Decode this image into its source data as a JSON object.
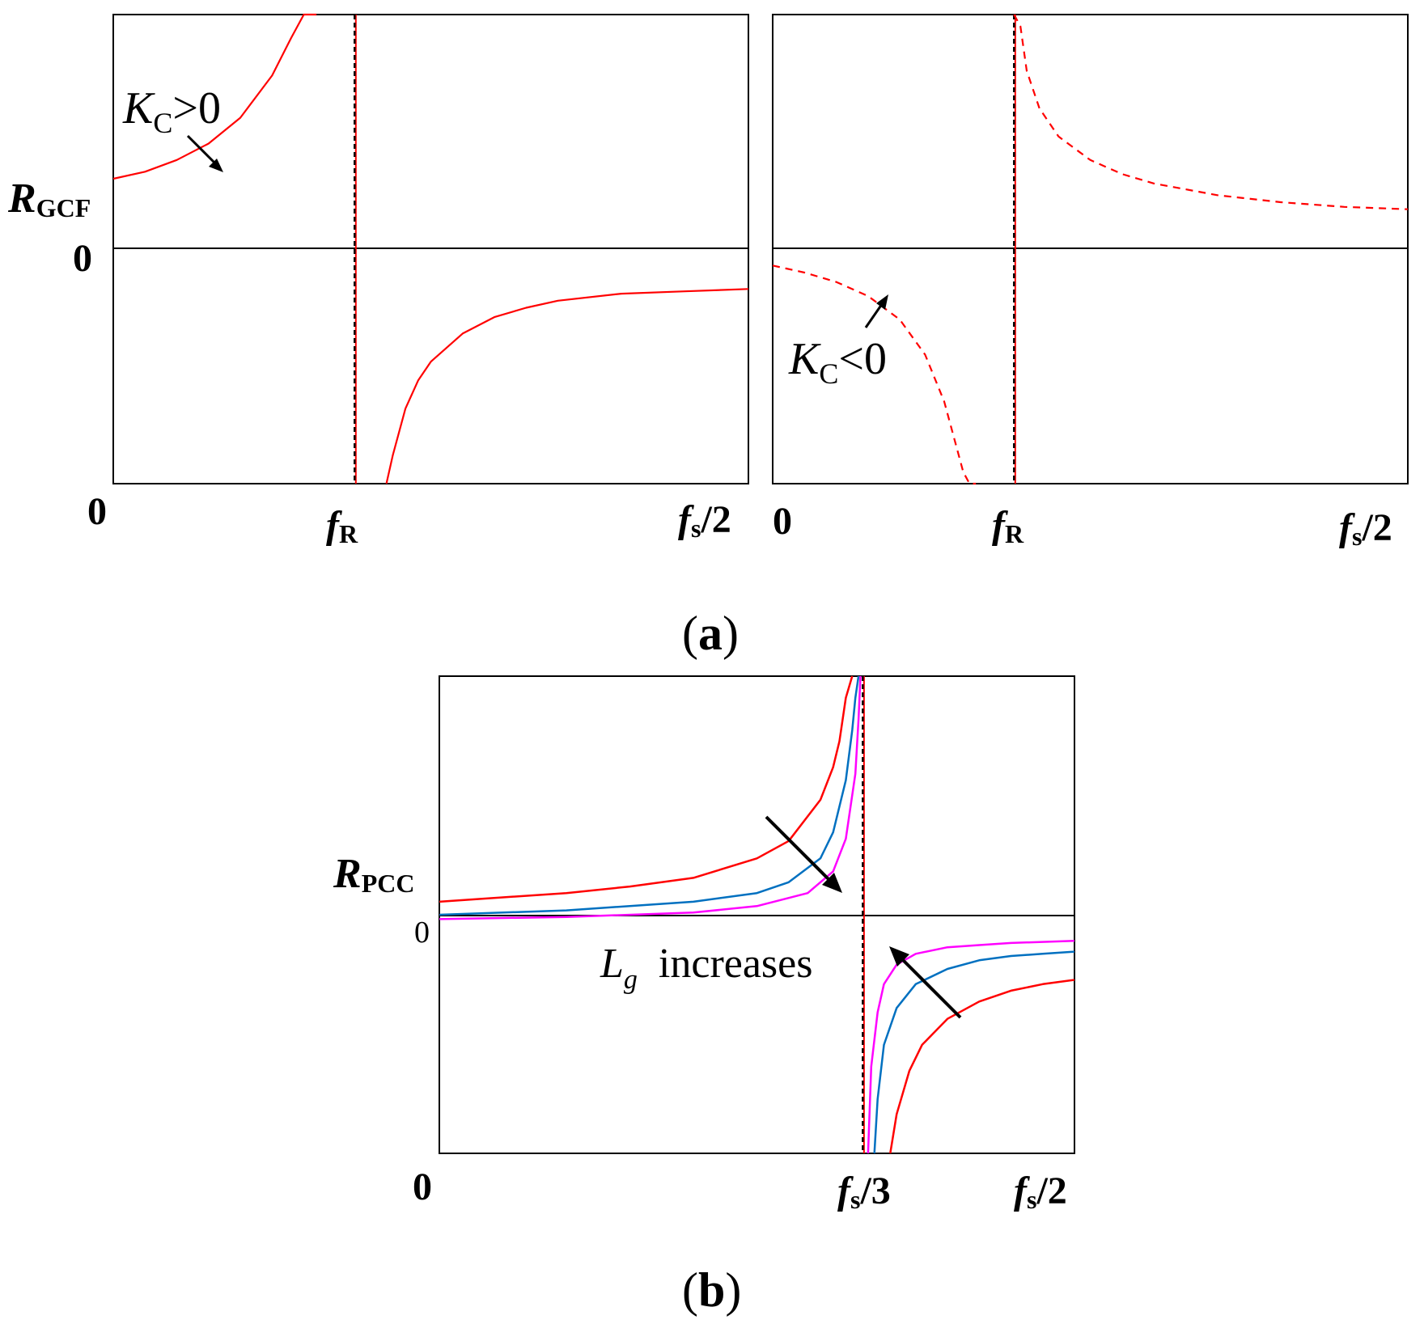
{
  "figure": {
    "panel_a_caption": {
      "open": "(",
      "letter": "a",
      "close": ")"
    },
    "panel_b_caption": {
      "open": "(",
      "letter": "b",
      "close": ")"
    }
  },
  "colors": {
    "axis": "#000000",
    "red": "#ff0000",
    "blue": "#0070c0",
    "magenta": "#ff00ff",
    "resonance_line": "#000000"
  },
  "chart_data": [
    {
      "id": "a-left",
      "type": "line",
      "ylabel": {
        "main": "R",
        "sub": "GCF"
      },
      "zero_label": "0",
      "x_ticks": [
        {
          "x": 0,
          "main": "0",
          "sub": "",
          "after": ""
        },
        {
          "x": 0.38,
          "main": "f",
          "sub": "R",
          "after": ""
        },
        {
          "x": 1.0,
          "main": "f",
          "sub": "s",
          "after": "/2"
        }
      ],
      "xlim": [
        0,
        1
      ],
      "ylim": [
        -1,
        1
      ],
      "resonance_x": 0.38,
      "annotation": {
        "symbol": "K",
        "sub": "C",
        "rel": ">0"
      },
      "series": [
        {
          "style": "solid",
          "color": "red",
          "x": [
            0,
            0.05,
            0.1,
            0.15,
            0.2,
            0.25,
            0.28,
            0.3,
            0.31,
            0.32
          ],
          "y": [
            0.3,
            0.33,
            0.38,
            0.45,
            0.56,
            0.74,
            0.9,
            1.0,
            1.0,
            1.0
          ]
        },
        {
          "style": "solid",
          "color": "red",
          "x": [
            0.43,
            0.44,
            0.46,
            0.48,
            0.5,
            0.55,
            0.6,
            0.65,
            0.7,
            0.8,
            0.9,
            1.0
          ],
          "y": [
            -1.0,
            -0.88,
            -0.68,
            -0.56,
            -0.48,
            -0.36,
            -0.29,
            -0.25,
            -0.22,
            -0.19,
            -0.18,
            -0.17
          ]
        }
      ]
    },
    {
      "id": "a-right",
      "type": "line",
      "zero_label": "",
      "x_ticks": [
        {
          "x": 0,
          "main": "0",
          "sub": "",
          "after": ""
        },
        {
          "x": 0.38,
          "main": "f",
          "sub": "R",
          "after": ""
        },
        {
          "x": 1.0,
          "main": "f",
          "sub": "s",
          "after": "/2"
        }
      ],
      "xlim": [
        0,
        1
      ],
      "ylim": [
        -1,
        1
      ],
      "resonance_x": 0.38,
      "annotation": {
        "symbol": "K",
        "sub": "C",
        "rel": "<0"
      },
      "series": [
        {
          "style": "dashed",
          "color": "red",
          "x": [
            0,
            0.05,
            0.1,
            0.15,
            0.2,
            0.24,
            0.27,
            0.29,
            0.3,
            0.31,
            0.32
          ],
          "y": [
            -0.07,
            -0.1,
            -0.14,
            -0.2,
            -0.3,
            -0.45,
            -0.65,
            -0.85,
            -0.95,
            -1.0,
            -1.0
          ]
        },
        {
          "style": "dashed",
          "color": "red",
          "x": [
            0.38,
            0.39,
            0.4,
            0.42,
            0.45,
            0.5,
            0.55,
            0.6,
            0.7,
            0.8,
            0.9,
            1.0
          ],
          "y": [
            1.0,
            0.95,
            0.76,
            0.6,
            0.48,
            0.38,
            0.32,
            0.28,
            0.23,
            0.2,
            0.18,
            0.17
          ]
        }
      ]
    },
    {
      "id": "b",
      "type": "line",
      "ylabel": {
        "main": "R",
        "sub": "PCC"
      },
      "zero_label": "0",
      "x_ticks": [
        {
          "x": 0,
          "main": "0",
          "sub": "",
          "after": ""
        },
        {
          "x": 0.6667,
          "main": "f",
          "sub": "s",
          "after": "/3"
        },
        {
          "x": 1.0,
          "main": "f",
          "sub": "s",
          "after": "/2"
        }
      ],
      "xlim": [
        0,
        1
      ],
      "ylim": [
        -1,
        1.2
      ],
      "resonance_x": 0.6667,
      "annotation": {
        "symbol": "L",
        "sub": "g",
        "rel": "increases"
      },
      "series": [
        {
          "color": "red",
          "x": [
            0,
            0.1,
            0.2,
            0.3,
            0.4,
            0.5,
            0.55,
            0.6,
            0.62,
            0.63,
            0.64,
            0.65
          ],
          "y": [
            0.16,
            0.18,
            0.2,
            0.23,
            0.27,
            0.36,
            0.44,
            0.63,
            0.78,
            0.9,
            1.1,
            1.2
          ]
        },
        {
          "color": "red",
          "x": [
            0.71,
            0.72,
            0.74,
            0.76,
            0.8,
            0.85,
            0.9,
            0.95,
            1.0
          ],
          "y": [
            -1.0,
            -0.82,
            -0.62,
            -0.5,
            -0.38,
            -0.3,
            -0.25,
            -0.22,
            -0.2
          ]
        },
        {
          "color": "blue",
          "x": [
            0,
            0.2,
            0.4,
            0.5,
            0.55,
            0.6,
            0.62,
            0.64,
            0.65,
            0.655,
            0.66
          ],
          "y": [
            0.1,
            0.12,
            0.16,
            0.2,
            0.25,
            0.36,
            0.48,
            0.72,
            0.95,
            1.1,
            1.2
          ]
        },
        {
          "color": "blue",
          "x": [
            0.685,
            0.69,
            0.7,
            0.72,
            0.75,
            0.8,
            0.85,
            0.9,
            0.95,
            1.0
          ],
          "y": [
            -1.0,
            -0.75,
            -0.5,
            -0.33,
            -0.22,
            -0.15,
            -0.11,
            -0.09,
            -0.08,
            -0.07
          ]
        },
        {
          "color": "magenta",
          "x": [
            0,
            0.2,
            0.4,
            0.5,
            0.58,
            0.62,
            0.64,
            0.655,
            0.66,
            0.663
          ],
          "y": [
            0.08,
            0.09,
            0.11,
            0.14,
            0.2,
            0.3,
            0.45,
            0.75,
            1.0,
            1.2
          ]
        },
        {
          "color": "magenta",
          "x": [
            0.675,
            0.68,
            0.69,
            0.7,
            0.72,
            0.75,
            0.8,
            0.85,
            0.9,
            1.0
          ],
          "y": [
            -1.0,
            -0.6,
            -0.35,
            -0.22,
            -0.13,
            -0.08,
            -0.05,
            -0.04,
            -0.03,
            -0.02
          ]
        }
      ]
    }
  ]
}
